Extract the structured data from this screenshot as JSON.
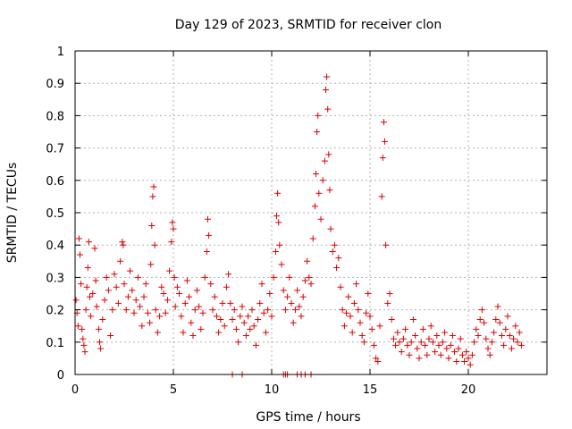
{
  "chart_data": {
    "type": "scatter",
    "title": "Day 129 of 2023, SRMTID for receiver clon",
    "xlabel": "GPS time / hours",
    "ylabel": "SRMTID / TECUs",
    "xlim": [
      0,
      24
    ],
    "ylim": [
      0,
      1
    ],
    "x_ticks": [
      0,
      5,
      10,
      15,
      20
    ],
    "x_tick_labels": [
      "0",
      "5",
      "10",
      "15",
      "20"
    ],
    "y_ticks": [
      0,
      0.1,
      0.2,
      0.3,
      0.4,
      0.5,
      0.6,
      0.7,
      0.8,
      0.9,
      1
    ],
    "y_tick_labels": [
      "0",
      "0.1",
      "0.2",
      "0.3",
      "0.4",
      "0.5",
      "0.6",
      "0.7",
      "0.8",
      "0.9",
      "1"
    ],
    "grid": true,
    "marker": "+",
    "color": "#dd0000",
    "series": [
      {
        "name": "SRMTID",
        "points": [
          [
            0.05,
            0.23
          ],
          [
            0.1,
            0.19
          ],
          [
            0.15,
            0.15
          ],
          [
            0.2,
            0.42
          ],
          [
            0.25,
            0.37
          ],
          [
            0.3,
            0.28
          ],
          [
            0.35,
            0.14
          ],
          [
            0.4,
            0.11
          ],
          [
            0.45,
            0.09
          ],
          [
            0.5,
            0.07
          ],
          [
            0.55,
            0.2
          ],
          [
            0.6,
            0.27
          ],
          [
            0.65,
            0.33
          ],
          [
            0.7,
            0.41
          ],
          [
            0.75,
            0.24
          ],
          [
            0.8,
            0.18
          ],
          [
            0.9,
            0.25
          ],
          [
            1.0,
            0.39
          ],
          [
            1.05,
            0.29
          ],
          [
            1.1,
            0.21
          ],
          [
            1.2,
            0.14
          ],
          [
            1.25,
            0.1
          ],
          [
            1.3,
            0.08
          ],
          [
            1.4,
            0.17
          ],
          [
            1.5,
            0.23
          ],
          [
            1.6,
            0.3
          ],
          [
            1.7,
            0.26
          ],
          [
            1.8,
            0.12
          ],
          [
            1.9,
            0.2
          ],
          [
            2.0,
            0.31
          ],
          [
            2.1,
            0.27
          ],
          [
            2.2,
            0.22
          ],
          [
            2.3,
            0.35
          ],
          [
            2.4,
            0.41
          ],
          [
            2.45,
            0.4
          ],
          [
            2.5,
            0.28
          ],
          [
            2.6,
            0.2
          ],
          [
            2.7,
            0.24
          ],
          [
            2.8,
            0.32
          ],
          [
            2.9,
            0.26
          ],
          [
            3.0,
            0.19
          ],
          [
            3.1,
            0.23
          ],
          [
            3.2,
            0.3
          ],
          [
            3.3,
            0.21
          ],
          [
            3.4,
            0.15
          ],
          [
            3.5,
            0.24
          ],
          [
            3.6,
            0.28
          ],
          [
            3.7,
            0.19
          ],
          [
            3.8,
            0.16
          ],
          [
            3.85,
            0.34
          ],
          [
            3.9,
            0.46
          ],
          [
            3.95,
            0.55
          ],
          [
            4.0,
            0.58
          ],
          [
            4.05,
            0.4
          ],
          [
            4.1,
            0.2
          ],
          [
            4.2,
            0.13
          ],
          [
            4.3,
            0.18
          ],
          [
            4.4,
            0.27
          ],
          [
            4.5,
            0.25
          ],
          [
            4.6,
            0.19
          ],
          [
            4.7,
            0.23
          ],
          [
            4.8,
            0.32
          ],
          [
            4.9,
            0.41
          ],
          [
            4.95,
            0.47
          ],
          [
            5.0,
            0.45
          ],
          [
            5.05,
            0.3
          ],
          [
            5.1,
            0.21
          ],
          [
            5.2,
            0.27
          ],
          [
            5.3,
            0.25
          ],
          [
            5.4,
            0.18
          ],
          [
            5.5,
            0.13
          ],
          [
            5.6,
            0.22
          ],
          [
            5.7,
            0.29
          ],
          [
            5.8,
            0.24
          ],
          [
            5.9,
            0.16
          ],
          [
            6.0,
            0.12
          ],
          [
            6.1,
            0.2
          ],
          [
            6.2,
            0.26
          ],
          [
            6.3,
            0.21
          ],
          [
            6.4,
            0.14
          ],
          [
            6.5,
            0.19
          ],
          [
            6.6,
            0.3
          ],
          [
            6.7,
            0.38
          ],
          [
            6.75,
            0.48
          ],
          [
            6.8,
            0.43
          ],
          [
            6.9,
            0.28
          ],
          [
            7.0,
            0.2
          ],
          [
            7.1,
            0.24
          ],
          [
            7.2,
            0.18
          ],
          [
            7.3,
            0.13
          ],
          [
            7.4,
            0.17
          ],
          [
            7.5,
            0.22
          ],
          [
            7.6,
            0.15
          ],
          [
            7.7,
            0.27
          ],
          [
            7.8,
            0.31
          ],
          [
            7.9,
            0.22
          ],
          [
            8.0,
            0.17
          ],
          [
            8.1,
            0.2
          ],
          [
            8.2,
            0.14
          ],
          [
            8.3,
            0.1
          ],
          [
            8.4,
            0.18
          ],
          [
            8.5,
            0.21
          ],
          [
            8.6,
            0.16
          ],
          [
            8.7,
            0.12
          ],
          [
            8.8,
            0.18
          ],
          [
            8.9,
            0.14
          ],
          [
            9.0,
            0.2
          ],
          [
            9.1,
            0.15
          ],
          [
            9.2,
            0.09
          ],
          [
            9.3,
            0.17
          ],
          [
            9.4,
            0.22
          ],
          [
            9.5,
            0.28
          ],
          [
            9.6,
            0.19
          ],
          [
            9.7,
            0.13
          ],
          [
            9.8,
            0.2
          ],
          [
            9.9,
            0.25
          ],
          [
            10.0,
            0.18
          ],
          [
            10.1,
            0.3
          ],
          [
            10.2,
            0.38
          ],
          [
            10.25,
            0.49
          ],
          [
            10.3,
            0.56
          ],
          [
            10.35,
            0.47
          ],
          [
            10.4,
            0.4
          ],
          [
            10.5,
            0.34
          ],
          [
            10.6,
            0.26
          ],
          [
            10.7,
            0.2
          ],
          [
            10.8,
            0.24
          ],
          [
            10.9,
            0.3
          ],
          [
            11.0,
            0.22
          ],
          [
            11.1,
            0.16
          ],
          [
            11.2,
            0.2
          ],
          [
            11.3,
            0.26
          ],
          [
            11.4,
            0.21
          ],
          [
            11.5,
            0.18
          ],
          [
            11.6,
            0.24
          ],
          [
            11.7,
            0.29
          ],
          [
            11.8,
            0.35
          ],
          [
            11.9,
            0.3
          ],
          [
            12.0,
            0.28
          ],
          [
            12.1,
            0.42
          ],
          [
            12.2,
            0.52
          ],
          [
            12.25,
            0.62
          ],
          [
            12.3,
            0.75
          ],
          [
            12.35,
            0.8
          ],
          [
            12.4,
            0.56
          ],
          [
            12.5,
            0.48
          ],
          [
            12.6,
            0.6
          ],
          [
            12.7,
            0.66
          ],
          [
            12.75,
            0.88
          ],
          [
            12.8,
            0.92
          ],
          [
            12.85,
            0.82
          ],
          [
            12.9,
            0.68
          ],
          [
            12.95,
            0.57
          ],
          [
            13.0,
            0.45
          ],
          [
            13.1,
            0.38
          ],
          [
            13.2,
            0.4
          ],
          [
            13.3,
            0.33
          ],
          [
            13.4,
            0.36
          ],
          [
            13.5,
            0.27
          ],
          [
            13.6,
            0.2
          ],
          [
            13.7,
            0.15
          ],
          [
            13.8,
            0.19
          ],
          [
            13.9,
            0.24
          ],
          [
            14.0,
            0.18
          ],
          [
            14.1,
            0.13
          ],
          [
            14.2,
            0.22
          ],
          [
            14.3,
            0.28
          ],
          [
            14.4,
            0.2
          ],
          [
            14.5,
            0.16
          ],
          [
            14.6,
            0.12
          ],
          [
            14.7,
            0.1
          ],
          [
            14.8,
            0.19
          ],
          [
            14.9,
            0.25
          ],
          [
            15.0,
            0.18
          ],
          [
            15.1,
            0.14
          ],
          [
            15.2,
            0.09
          ],
          [
            15.3,
            0.05
          ],
          [
            15.4,
            0.04
          ],
          [
            15.5,
            0.15
          ],
          [
            15.6,
            0.55
          ],
          [
            15.65,
            0.67
          ],
          [
            15.7,
            0.78
          ],
          [
            15.75,
            0.72
          ],
          [
            15.8,
            0.4
          ],
          [
            15.9,
            0.22
          ],
          [
            16.0,
            0.25
          ],
          [
            16.1,
            0.17
          ],
          [
            16.2,
            0.11
          ],
          [
            16.3,
            0.09
          ],
          [
            16.4,
            0.13
          ],
          [
            16.5,
            0.1
          ],
          [
            16.6,
            0.07
          ],
          [
            16.7,
            0.11
          ],
          [
            16.8,
            0.14
          ],
          [
            16.9,
            0.09
          ],
          [
            17.0,
            0.06
          ],
          [
            17.1,
            0.1
          ],
          [
            17.2,
            0.17
          ],
          [
            17.3,
            0.12
          ],
          [
            17.4,
            0.08
          ],
          [
            17.5,
            0.05
          ],
          [
            17.6,
            0.1
          ],
          [
            17.7,
            0.14
          ],
          [
            17.8,
            0.09
          ],
          [
            17.9,
            0.06
          ],
          [
            18.0,
            0.11
          ],
          [
            18.1,
            0.15
          ],
          [
            18.2,
            0.1
          ],
          [
            18.3,
            0.07
          ],
          [
            18.4,
            0.12
          ],
          [
            18.5,
            0.09
          ],
          [
            18.6,
            0.06
          ],
          [
            18.7,
            0.1
          ],
          [
            18.8,
            0.13
          ],
          [
            18.9,
            0.08
          ],
          [
            19.0,
            0.05
          ],
          [
            19.1,
            0.09
          ],
          [
            19.2,
            0.12
          ],
          [
            19.3,
            0.07
          ],
          [
            19.4,
            0.04
          ],
          [
            19.5,
            0.08
          ],
          [
            19.6,
            0.11
          ],
          [
            19.7,
            0.06
          ],
          [
            19.8,
            0.04
          ],
          [
            19.9,
            0.07
          ],
          [
            20.0,
            0.05
          ],
          [
            20.1,
            0.03
          ],
          [
            20.2,
            0.06
          ],
          [
            20.3,
            0.1
          ],
          [
            20.4,
            0.14
          ],
          [
            20.5,
            0.12
          ],
          [
            20.6,
            0.17
          ],
          [
            20.7,
            0.2
          ],
          [
            20.8,
            0.16
          ],
          [
            20.9,
            0.11
          ],
          [
            21.0,
            0.08
          ],
          [
            21.1,
            0.06
          ],
          [
            21.2,
            0.1
          ],
          [
            21.3,
            0.13
          ],
          [
            21.4,
            0.17
          ],
          [
            21.5,
            0.21
          ],
          [
            21.6,
            0.16
          ],
          [
            21.7,
            0.12
          ],
          [
            21.8,
            0.09
          ],
          [
            21.9,
            0.14
          ],
          [
            22.0,
            0.18
          ],
          [
            22.1,
            0.12
          ],
          [
            22.2,
            0.08
          ],
          [
            22.3,
            0.11
          ],
          [
            22.4,
            0.15
          ],
          [
            22.5,
            0.1
          ],
          [
            22.6,
            0.13
          ],
          [
            22.7,
            0.09
          ]
        ],
        "zero_points": [
          8.0,
          8.5,
          10.6,
          10.7,
          10.8,
          11.3,
          11.5,
          11.7,
          12.0
        ]
      }
    ]
  }
}
